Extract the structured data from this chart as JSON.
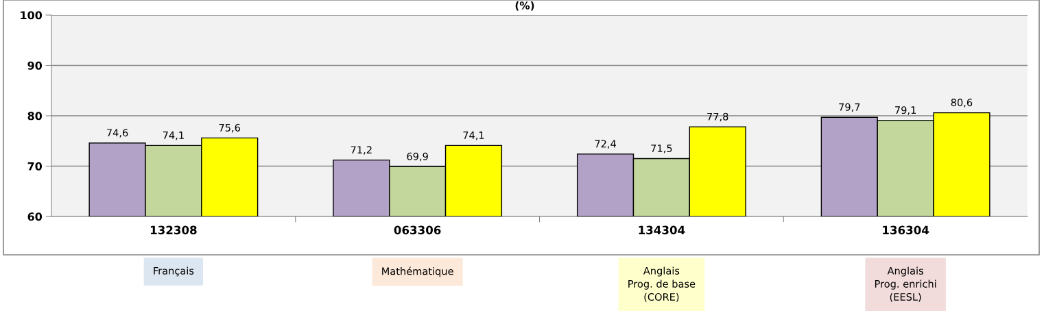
{
  "chart_data": {
    "type": "bar",
    "title": "(%)",
    "categories": [
      "132308",
      "063306",
      "134304",
      "136304"
    ],
    "series": [
      {
        "color": "#b3a2c7",
        "values": [
          74.6,
          71.2,
          72.4,
          79.7
        ],
        "value_labels": [
          "74,6",
          "71,2",
          "72,4",
          "79,7"
        ]
      },
      {
        "color": "#c3d69b",
        "values": [
          74.1,
          69.9,
          71.5,
          79.1
        ],
        "value_labels": [
          "74,1",
          "69,9",
          "71,5",
          "79,1"
        ]
      },
      {
        "color": "#ffff00",
        "values": [
          75.6,
          74.1,
          77.8,
          80.6
        ],
        "value_labels": [
          "75,6",
          "74,1",
          "77,8",
          "80,6"
        ]
      }
    ],
    "ylim": [
      60,
      100
    ],
    "yticks": [
      60,
      70,
      80,
      90,
      100
    ],
    "grid": "y",
    "annotations": [
      "Français",
      "Mathématique",
      "Anglais\nProg. de base\n(CORE)",
      "Anglais\nProg. enrichi\n(EESL)"
    ]
  }
}
